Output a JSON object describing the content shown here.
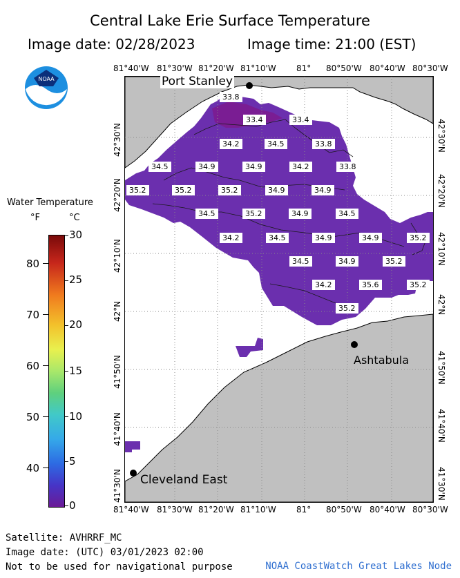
{
  "title": "Central Lake Erie Surface Temperature",
  "image_date": "Image date: 02/28/2023",
  "image_time": "Image time: 21:00 (EST)",
  "logo_text": "NOAA",
  "legend": {
    "title": "Water Temperature",
    "unit_f": "°F",
    "unit_c": "°C",
    "f_ticks": [
      "80",
      "70",
      "60",
      "50",
      "40"
    ],
    "c_ticks": [
      "30",
      "25",
      "20",
      "15",
      "10",
      "5",
      "0"
    ]
  },
  "lon_labels": [
    "81°40'W",
    "81°30'W",
    "81°20'W",
    "81°10'W",
    "81°",
    "80°50'W",
    "80°40'W",
    "80°30'W"
  ],
  "lat_labels": [
    "42°30'N",
    "42°20'N",
    "42°10'N",
    "42°N",
    "41°50'N",
    "41°40'N",
    "41°30'N"
  ],
  "places": {
    "port_stanley": "Port Stanley",
    "ashtabula": "Ashtabula",
    "cleveland_east": "Cleveland East"
  },
  "temperature_labels": [
    "33.8",
    "33.4",
    "33.4",
    "34.2",
    "34.5",
    "33.8",
    "34.5",
    "34.9",
    "34.9",
    "34.2",
    "33.8",
    "35.2",
    "35.2",
    "35.2",
    "34.9",
    "34.9",
    "34.5",
    "35.2",
    "34.9",
    "34.5",
    "34.2",
    "34.5",
    "34.9",
    "34.9",
    "35.2",
    "34.5",
    "34.9",
    "35.2",
    "34.2",
    "35.6",
    "35.2",
    "35.2"
  ],
  "colors": {
    "land": "#c0c0c0",
    "water_cold": "#6a2aa8",
    "water_coldest": "#7a1a8e",
    "credit": "#2f6fd0"
  },
  "footer": {
    "satellite": "Satellite: AVHRRF_MC",
    "utc_date": "Image date: (UTC) 03/01/2023  02:00",
    "disclaimer": "Not to be used for navigational purpose",
    "credit": "NOAA CoastWatch Great Lakes Node"
  }
}
